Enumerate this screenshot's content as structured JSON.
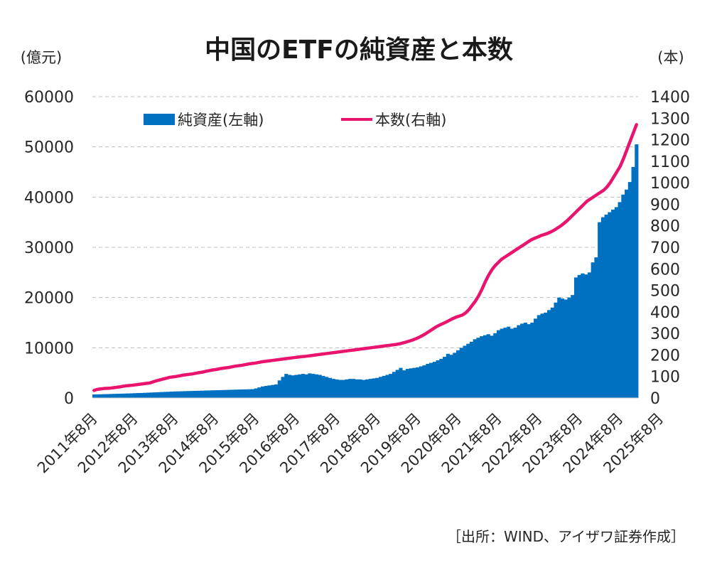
{
  "chart_data": {
    "type": "bar+line",
    "title": "中国のETFの純資産と本数",
    "left_unit": "(億元)",
    "right_unit": "(本)",
    "source": "［出所：WIND、アイザワ証券作成］",
    "ylim_left": [
      0,
      60000
    ],
    "ylim_right": [
      0,
      1400
    ],
    "left_ticks": [
      "0",
      "10000",
      "20000",
      "30000",
      "40000",
      "50000",
      "60000"
    ],
    "right_ticks": [
      "0",
      "100",
      "200",
      "300",
      "400",
      "500",
      "600",
      "700",
      "800",
      "900",
      "1000",
      "1100",
      "1200",
      "1300",
      "1400"
    ],
    "x_tick_labels": [
      "2011年8月",
      "2012年8月",
      "2013年8月",
      "2014年8月",
      "2015年8月",
      "2016年8月",
      "2017年8月",
      "2018年8月",
      "2019年8月",
      "2020年8月",
      "2021年8月",
      "2022年8月",
      "2023年8月",
      "2024年8月",
      "2025年8月"
    ],
    "grid": true,
    "legend_position": "top",
    "bar_color": "#0070C0",
    "line_color": "#E8146E",
    "series": [
      {
        "name": "純資産(左軸)",
        "axis": "left",
        "type": "bar",
        "values": [
          700,
          720,
          740,
          760,
          780,
          800,
          820,
          840,
          860,
          880,
          900,
          920,
          950,
          980,
          1000,
          1030,
          1060,
          1090,
          1120,
          1150,
          1180,
          1210,
          1240,
          1270,
          1300,
          1320,
          1340,
          1360,
          1380,
          1400,
          1420,
          1440,
          1460,
          1480,
          1500,
          1520,
          1540,
          1560,
          1580,
          1600,
          1620,
          1640,
          1660,
          1680,
          1700,
          1720,
          1740,
          1760,
          1900,
          2100,
          2300,
          2400,
          2500,
          2600,
          2700,
          3500,
          4200,
          4800,
          4600,
          4500,
          4600,
          4700,
          4800,
          4700,
          4900,
          4800,
          4700,
          4600,
          4400,
          4200,
          4000,
          3800,
          3700,
          3600,
          3600,
          3700,
          3800,
          3800,
          3700,
          3700,
          3600,
          3700,
          3800,
          3900,
          4000,
          4200,
          4400,
          4600,
          4800,
          5200,
          5600,
          6000,
          5500,
          5800,
          5900,
          6000,
          6100,
          6300,
          6500,
          6800,
          7000,
          7200,
          7500,
          7800,
          8200,
          8800,
          8600,
          9000,
          9500,
          10000,
          10400,
          10800,
          11200,
          11700,
          12000,
          12300,
          12500,
          12700,
          12400,
          12900,
          13500,
          13800,
          14000,
          14200,
          13800,
          14000,
          14500,
          14800,
          15000,
          14700,
          15000,
          15800,
          16500,
          16800,
          17000,
          17500,
          18000,
          19000,
          20000,
          19800,
          19600,
          20000,
          20500,
          24000,
          24500,
          24800,
          24600,
          25000,
          27000,
          28000,
          35000,
          36000,
          36500,
          37000,
          37500,
          38000,
          39000,
          40500,
          41500,
          43000,
          46000,
          50500
        ]
      },
      {
        "name": "本数(右軸)",
        "axis": "right",
        "type": "line",
        "values": [
          35,
          40,
          42,
          44,
          45,
          46,
          48,
          50,
          52,
          55,
          57,
          58,
          60,
          62,
          64,
          66,
          68,
          70,
          75,
          80,
          84,
          88,
          92,
          96,
          98,
          100,
          103,
          106,
          108,
          110,
          112,
          115,
          118,
          120,
          124,
          127,
          130,
          132,
          135,
          138,
          140,
          142,
          145,
          148,
          150,
          152,
          155,
          158,
          160,
          162,
          165,
          168,
          170,
          172,
          174,
          176,
          178,
          180,
          182,
          184,
          186,
          188,
          190,
          192,
          193,
          195,
          197,
          199,
          201,
          203,
          205,
          207,
          209,
          211,
          213,
          215,
          217,
          219,
          221,
          223,
          225,
          227,
          229,
          231,
          233,
          235,
          237,
          239,
          241,
          243,
          245,
          247,
          249,
          252,
          256,
          260,
          265,
          270,
          276,
          283,
          291,
          300,
          310,
          320,
          330,
          338,
          345,
          352,
          360,
          368,
          375,
          380,
          385,
          395,
          410,
          430,
          450,
          475,
          505,
          540,
          570,
          595,
          615,
          630,
          645,
          655,
          665,
          675,
          685,
          695,
          705,
          715,
          725,
          735,
          742,
          748,
          755,
          760,
          765,
          772,
          780,
          790,
          800,
          812,
          825,
          840,
          855,
          870,
          885,
          900,
          915,
          925,
          935,
          945,
          955,
          965,
          980,
          1000,
          1025,
          1050,
          1075,
          1110,
          1150,
          1190,
          1230,
          1270
        ]
      }
    ]
  }
}
